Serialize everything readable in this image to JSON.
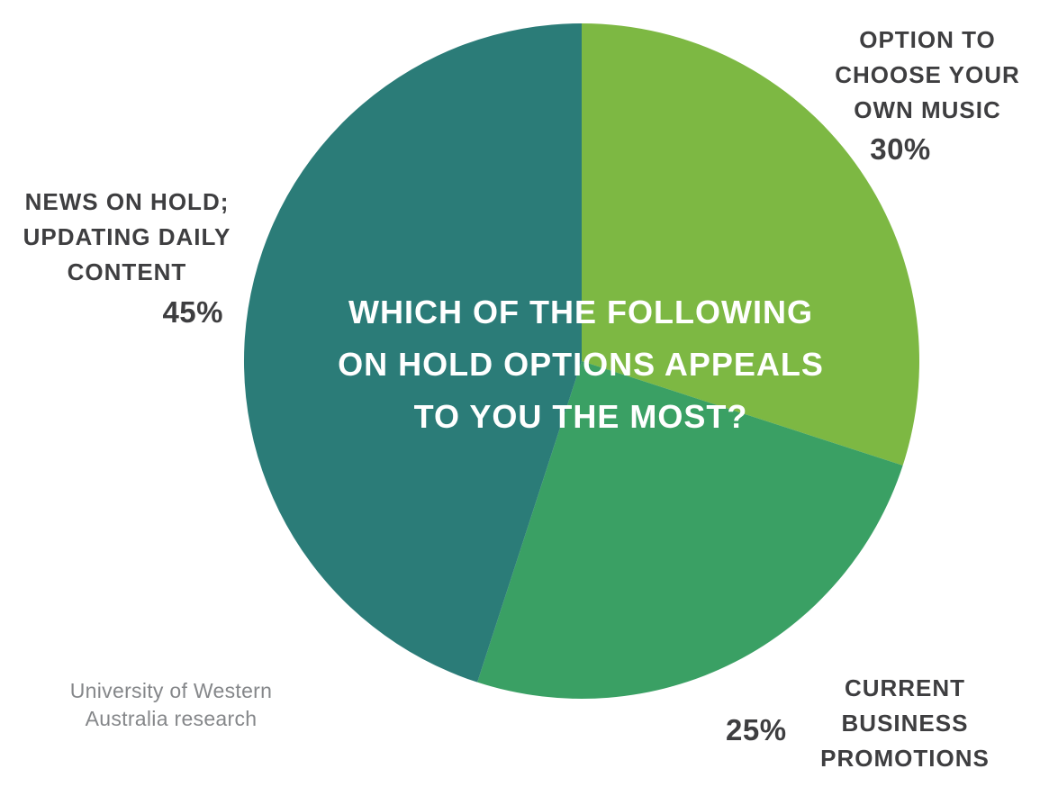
{
  "chart_data": {
    "type": "pie",
    "title": "WHICH OF THE FOLLOWING ON HOLD OPTIONS APPEALS TO YOU THE MOST?",
    "title_lines": [
      "WHICH OF THE FOLLOWING",
      "ON HOLD OPTIONS APPEALS",
      "TO YOU THE MOST?"
    ],
    "source_lines": [
      "University of Western",
      "Australia research"
    ],
    "start_angle_deg": 0,
    "direction": "clockwise",
    "legend_position": "labels-around-pie",
    "slices": [
      {
        "label": "OPTION TO CHOOSE YOUR OWN MUSIC",
        "label_lines": [
          "OPTION TO",
          "CHOOSE YOUR",
          "OWN MUSIC"
        ],
        "value": 30,
        "pct_label": "30%",
        "color": "#7db843"
      },
      {
        "label": "CURRENT BUSINESS PROMOTIONS",
        "label_lines": [
          "CURRENT",
          "BUSINESS",
          "PROMOTIONS"
        ],
        "value": 25,
        "pct_label": "25%",
        "color": "#3aa064"
      },
      {
        "label": "NEWS ON HOLD; UPDATING DAILY CONTENT",
        "label_lines": [
          "NEWS ON HOLD;",
          "UPDATING DAILY",
          "CONTENT"
        ],
        "value": 45,
        "pct_label": "45%",
        "color": "#2b7c78"
      }
    ]
  },
  "colors": {
    "title_text": "#ffffff",
    "label_text": "#3e3e40",
    "source_text": "#85878a",
    "background": "#ffffff"
  }
}
